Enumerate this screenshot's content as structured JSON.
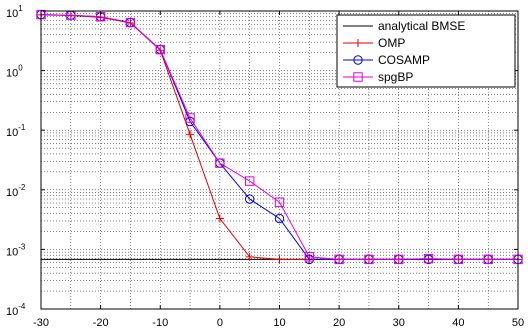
{
  "chart_data": {
    "type": "line",
    "xscale": "linear",
    "yscale": "log",
    "xlim": [
      -30,
      50
    ],
    "ylim": [
      0.0001,
      10
    ],
    "grid": true,
    "legend_position": "top-right",
    "x_ticks": [
      "-30",
      "-20",
      "-10",
      "0",
      "10",
      "20",
      "30",
      "40",
      "50"
    ],
    "y_ticks": [
      {
        "base": "10",
        "exp": "-4",
        "value": 0.0001
      },
      {
        "base": "10",
        "exp": "-3",
        "value": 0.001
      },
      {
        "base": "10",
        "exp": "-2",
        "value": 0.01
      },
      {
        "base": "10",
        "exp": "-1",
        "value": 0.1
      },
      {
        "base": "10",
        "exp": "0",
        "value": 1
      },
      {
        "base": "10",
        "exp": "1",
        "value": 10
      }
    ],
    "x": [
      -30,
      -25,
      -20,
      -15,
      -10,
      -5,
      0,
      5,
      10,
      15,
      20,
      25,
      30,
      35,
      40,
      45,
      50
    ],
    "series": [
      {
        "name": "analytical BMSE",
        "color": "#000000",
        "marker": "none",
        "values": [
          0.00068,
          0.00068,
          0.00068,
          0.00068,
          0.00068,
          0.00068,
          0.00068,
          0.00068,
          0.00068,
          0.00068,
          0.00068,
          0.00068,
          0.00068,
          0.00068,
          0.00068,
          0.00068,
          0.00068
        ]
      },
      {
        "name": "OMP",
        "color": "#e00000",
        "marker": "plus",
        "values": [
          8.6,
          8.4,
          7.8,
          6.3,
          2.2,
          0.085,
          0.0033,
          0.00075,
          0.00068,
          0.00068,
          0.00068,
          0.00068,
          0.00068,
          0.00068,
          0.00068,
          0.00068,
          0.00068
        ]
      },
      {
        "name": "COSAMP",
        "color": "#0000e0",
        "marker": "circle",
        "values": [
          8.7,
          8.5,
          8.0,
          6.4,
          2.25,
          0.14,
          0.028,
          0.007,
          0.0033,
          0.00068,
          0.00068,
          0.00068,
          0.00068,
          0.00068,
          0.00068,
          0.00068,
          0.00068
        ]
      },
      {
        "name": "spgBP",
        "color": "#e000e0",
        "marker": "square",
        "values": [
          8.7,
          8.5,
          8.0,
          6.4,
          2.25,
          0.16,
          0.028,
          0.014,
          0.0062,
          0.00075,
          0.00068,
          0.00068,
          0.00068,
          0.0007,
          0.00068,
          0.00068,
          0.00068
        ]
      }
    ]
  }
}
